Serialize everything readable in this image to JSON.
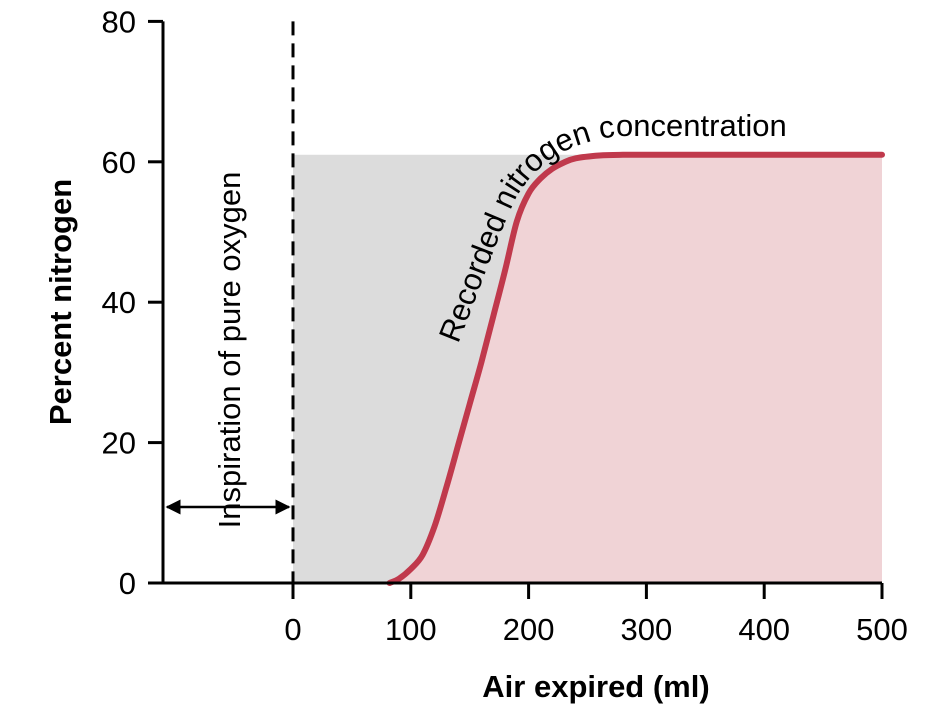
{
  "chart_data": {
    "type": "area",
    "xlabel": "Air expired (ml)",
    "ylabel": "Percent nitrogen",
    "xlim": [
      -110,
      500
    ],
    "ylim": [
      0,
      80
    ],
    "x_ticks": [
      0,
      100,
      200,
      300,
      400,
      500
    ],
    "y_ticks": [
      0,
      20,
      40,
      60,
      80
    ],
    "grid": false,
    "series": [
      {
        "name": "Recorded nitrogen concentration",
        "x": [
          82,
          90,
          100,
          110,
          120,
          130,
          140,
          150,
          160,
          170,
          180,
          190,
          200,
          210,
          220,
          230,
          240,
          260,
          280,
          300,
          350,
          400,
          450,
          500
        ],
        "y": [
          0,
          0.6,
          2,
          4,
          8,
          13.5,
          19.5,
          25.5,
          31.5,
          38,
          44.5,
          51.5,
          55.5,
          57.6,
          59,
          59.9,
          60.5,
          60.9,
          61,
          61,
          61,
          61,
          61,
          61
        ]
      }
    ],
    "shaded_regions": [
      {
        "name": "dead-space-area",
        "x": [
          0,
          500
        ],
        "y_top": 61,
        "color": "#dcdcdc"
      },
      {
        "name": "alveolar-air-area",
        "under_series": "Recorded nitrogen concentration",
        "color": "#f0d3d6"
      }
    ],
    "reference_lines": [
      {
        "type": "vertical-dashed",
        "x": 0
      }
    ],
    "annotations": {
      "curve_label": "Recorded nitrogen concentration",
      "inspiration_label": "Inspiration of pure oxygen"
    },
    "colors": {
      "curve": "#c0394c",
      "curve_fill": "#f0d3d6",
      "gray_fill": "#dcdcdc",
      "axis": "#000000"
    }
  }
}
